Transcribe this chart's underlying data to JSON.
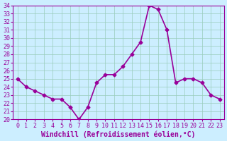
{
  "x": [
    0,
    1,
    2,
    3,
    4,
    5,
    6,
    7,
    8,
    9,
    10,
    11,
    12,
    13,
    14,
    15,
    16,
    17,
    18,
    19,
    20,
    21,
    22,
    23
  ],
  "y": [
    25.0,
    24.0,
    23.5,
    23.0,
    22.5,
    22.5,
    21.5,
    20.0,
    21.5,
    24.5,
    25.5,
    25.5,
    26.5,
    28.0,
    29.5,
    34.0,
    33.5,
    31.0,
    24.5,
    25.0,
    25.0,
    24.5,
    23.0,
    22.5
  ],
  "ylim": [
    20,
    34
  ],
  "yticks": [
    20,
    21,
    22,
    23,
    24,
    25,
    26,
    27,
    28,
    29,
    30,
    31,
    32,
    33,
    34
  ],
  "xlim": [
    -0.5,
    23.5
  ],
  "xticks": [
    0,
    1,
    2,
    3,
    4,
    5,
    6,
    7,
    8,
    9,
    10,
    11,
    12,
    13,
    14,
    15,
    16,
    17,
    18,
    19,
    20,
    21,
    22,
    23
  ],
  "line_color": "#990099",
  "marker": "D",
  "marker_size": 2.5,
  "background_color": "#cceeff",
  "grid_color": "#99ccbb",
  "xlabel": "Windchill (Refroidissement éolien,°C)",
  "xlabel_fontsize": 7,
  "tick_fontsize": 6,
  "line_width": 1.2
}
